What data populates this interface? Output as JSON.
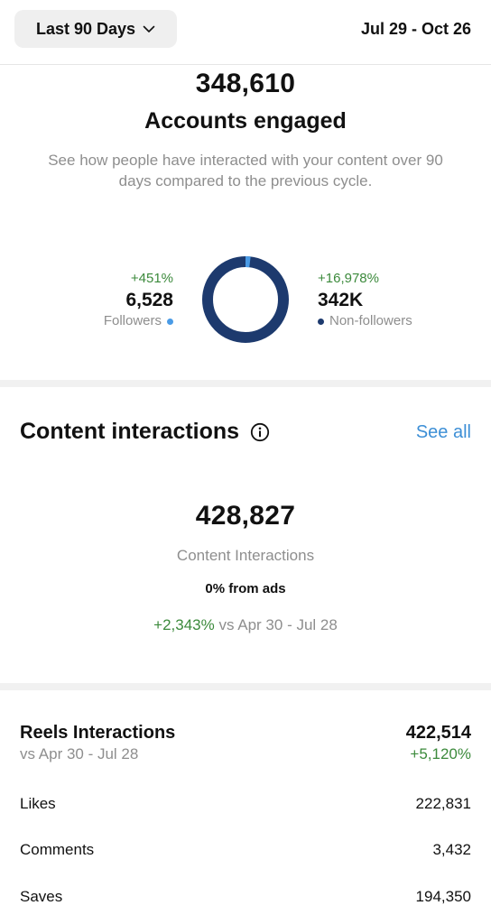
{
  "header": {
    "range_label": "Last 90 Days",
    "date_range": "Jul 29 - Oct 26"
  },
  "accounts": {
    "total": "348,610",
    "title": "Accounts engaged",
    "description": "See how people have interacted with your content over 90 days compared to the previous cycle.",
    "followers": {
      "change": "+451%",
      "value": "6,528",
      "label": "Followers",
      "color": "#4a9be6"
    },
    "non_followers": {
      "change": "+16,978%",
      "value": "342K",
      "label": "Non-followers",
      "color": "#1d3a6e"
    },
    "donut_followers_fraction": 0.019
  },
  "content": {
    "title": "Content interactions",
    "see_all": "See all",
    "total": "428,827",
    "label": "Content Interactions",
    "ads": "0% from ads",
    "change": "+2,343%",
    "compare": " vs Apr 30 - Jul 28"
  },
  "reels": {
    "title": "Reels Interactions",
    "subtitle": "vs Apr 30 - Jul 28",
    "total": "422,514",
    "change": "+5,120%",
    "rows": [
      {
        "label": "Likes",
        "value": "222,831"
      },
      {
        "label": "Comments",
        "value": "3,432"
      },
      {
        "label": "Saves",
        "value": "194,350"
      }
    ]
  },
  "colors": {
    "green": "#3c8a3c",
    "link": "#3d8fd6",
    "donut_dark": "#1d3a6e",
    "donut_light": "#4a9be6"
  }
}
